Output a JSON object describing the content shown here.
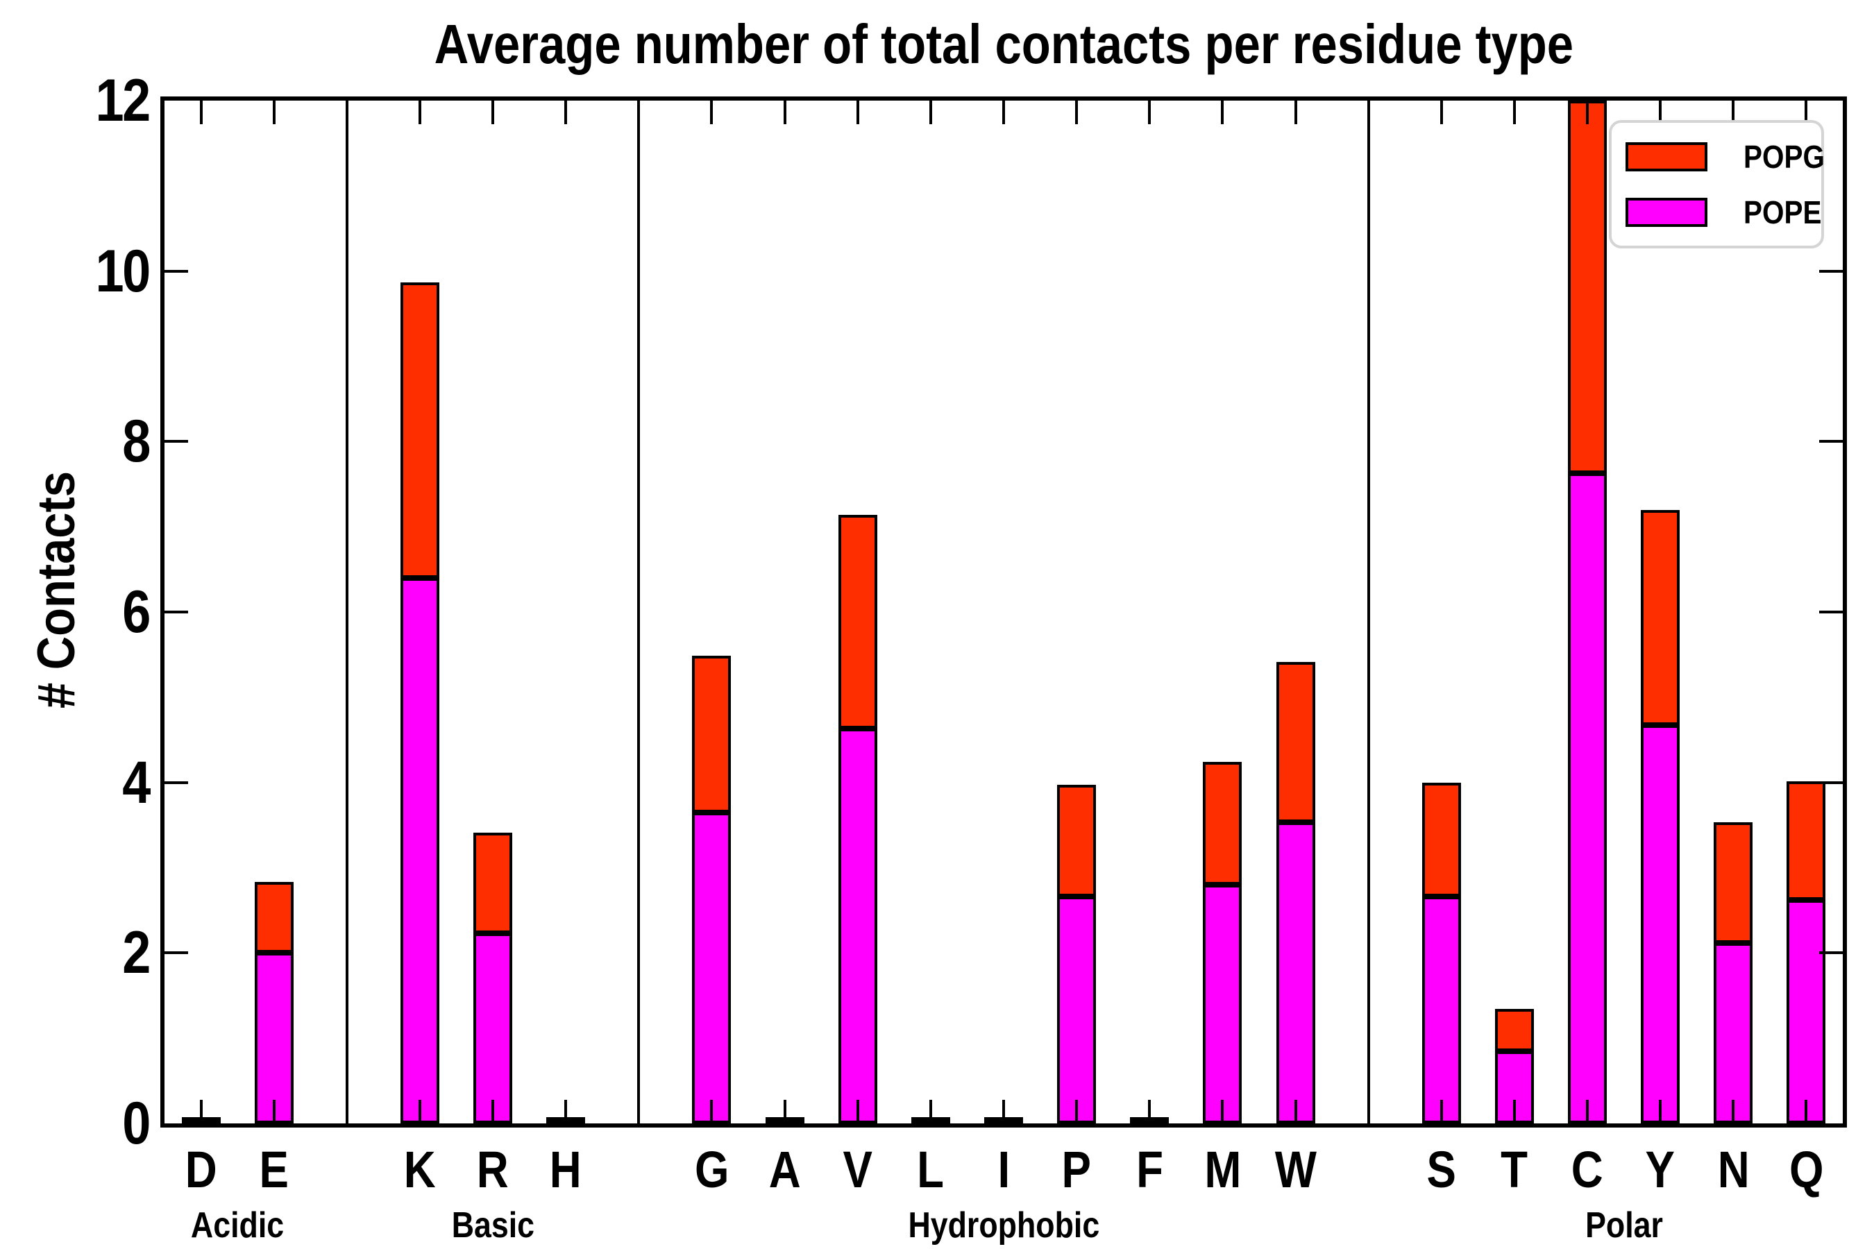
{
  "title": "Average number of total contacts per residue type",
  "ylabel": "# Contacts",
  "legend": {
    "entries": [
      {
        "label": "POPG",
        "color": "#ff2e00"
      },
      {
        "label": "POPE",
        "color": "#ff00ff"
      }
    ],
    "position": "upper right"
  },
  "colors": {
    "popg_red": "#ff2e00",
    "pope_magenta": "#ff00ff",
    "bar_outline": "#000000",
    "axis": "#000000",
    "legend_border": "#d4d4d4",
    "background": "#ffffff"
  },
  "chart_data": {
    "type": "bar",
    "stacked": true,
    "title": "Average number of total contacts per residue type",
    "xlabel": "",
    "ylabel": "# Contacts",
    "ylim": [
      0,
      12
    ],
    "yticks": [
      0,
      2,
      4,
      6,
      8,
      10,
      12
    ],
    "grid": false,
    "legend_position": "upper right",
    "groups": [
      {
        "label": "Acidic",
        "categories": [
          "D",
          "E"
        ]
      },
      {
        "label": "Basic",
        "categories": [
          "K",
          "R",
          "H"
        ]
      },
      {
        "label": "Hydrophobic",
        "categories": [
          "G",
          "A",
          "V",
          "L",
          "I",
          "P",
          "F",
          "M",
          "W"
        ]
      },
      {
        "label": "Polar",
        "categories": [
          "S",
          "T",
          "C",
          "Y",
          "N",
          "Q"
        ]
      }
    ],
    "categories": [
      "D",
      "E",
      "K",
      "R",
      "H",
      "G",
      "A",
      "V",
      "L",
      "I",
      "P",
      "F",
      "M",
      "W",
      "S",
      "T",
      "C",
      "Y",
      "N",
      "Q"
    ],
    "series": [
      {
        "name": "POPE",
        "color": "#ff00ff",
        "values": [
          0.02,
          2.0,
          6.4,
          2.23,
          0.02,
          3.65,
          0.02,
          4.63,
          0.02,
          0.02,
          2.66,
          0.02,
          2.8,
          3.53,
          2.66,
          0.85,
          7.63,
          4.67,
          2.12,
          2.62
        ]
      },
      {
        "name": "POPG",
        "color": "#ff2e00",
        "values": [
          0.01,
          0.83,
          3.47,
          1.18,
          0.01,
          1.84,
          0.01,
          2.51,
          0.01,
          0.01,
          1.31,
          0.01,
          1.44,
          1.88,
          1.34,
          0.49,
          4.37,
          2.53,
          1.41,
          1.39
        ]
      }
    ],
    "totals": [
      0.03,
      2.83,
      9.87,
      3.41,
      0.03,
      5.49,
      0.03,
      7.14,
      0.03,
      0.03,
      3.97,
      0.03,
      4.24,
      5.41,
      4.0,
      1.34,
      12.0,
      7.2,
      3.53,
      4.01
    ]
  }
}
